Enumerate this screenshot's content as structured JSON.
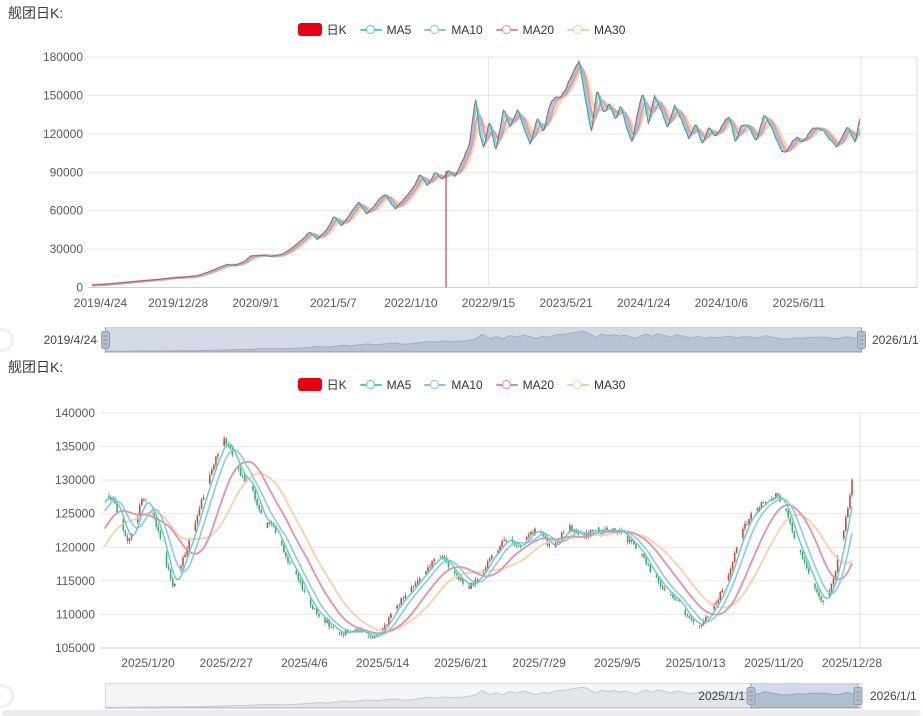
{
  "chart_data": [
    {
      "type": "candlestick",
      "title": "舰团日K:",
      "legend": [
        {
          "label": "日K",
          "type": "kline",
          "color": "#e60012"
        },
        {
          "label": "MA5",
          "type": "line",
          "color": "#55cbbb"
        },
        {
          "label": "MA10",
          "type": "line",
          "color": "#87c5ea"
        },
        {
          "label": "MA20",
          "type": "line",
          "color": "#e48ba4"
        },
        {
          "label": "MA30",
          "type": "line",
          "color": "#f4cfa4"
        }
      ],
      "y_tick_labels": [
        "0",
        "30000",
        "60000",
        "90000",
        "120000",
        "150000",
        "180000"
      ],
      "ylim": [
        0,
        180000
      ],
      "x_tick_labels": [
        "2019/4/24",
        "2019/12/28",
        "2020/9/1",
        "2021/5/7",
        "2022/1/10",
        "2022/9/15",
        "2023/5/21",
        "2024/1/24",
        "2024/10/6",
        "2025/6/11"
      ],
      "x_range": [
        "2019/4/24",
        "2026/1/1"
      ],
      "candle_colors": {
        "up": "#cb4842",
        "down": "#43a477"
      },
      "anomaly": {
        "date": "2022/5/23",
        "from": 91000,
        "to": 0,
        "color": "#e23b3b"
      },
      "close_keypoints": [
        [
          "2019/4/24",
          1800
        ],
        [
          "2019/6/10",
          2600
        ],
        [
          "2019/8/1",
          3800
        ],
        [
          "2019/10/1",
          5200
        ],
        [
          "2019/11/20",
          6300
        ],
        [
          "2020/1/5",
          7600
        ],
        [
          "2020/2/20",
          8100
        ],
        [
          "2020/3/20",
          9200
        ],
        [
          "2020/4/25",
          11800
        ],
        [
          "2020/6/1",
          15800
        ],
        [
          "2020/6/25",
          17600
        ],
        [
          "2020/7/20",
          17400
        ],
        [
          "2020/8/20",
          20500
        ],
        [
          "2020/9/10",
          24800
        ],
        [
          "2020/10/20",
          25200
        ],
        [
          "2020/11/15",
          23800
        ],
        [
          "2020/12/20",
          26500
        ],
        [
          "2021/1/20",
          31000
        ],
        [
          "2021/2/20",
          38000
        ],
        [
          "2021/3/15",
          43200
        ],
        [
          "2021/4/8",
          36800
        ],
        [
          "2021/5/10",
          46000
        ],
        [
          "2021/6/1",
          55500
        ],
        [
          "2021/6/24",
          48500
        ],
        [
          "2021/7/25",
          59000
        ],
        [
          "2021/8/18",
          65500
        ],
        [
          "2021/9/12",
          57500
        ],
        [
          "2021/10/15",
          66500
        ],
        [
          "2021/11/12",
          73500
        ],
        [
          "2021/12/12",
          61500
        ],
        [
          "2022/1/8",
          67500
        ],
        [
          "2022/2/8",
          78500
        ],
        [
          "2022/3/1",
          88000
        ],
        [
          "2022/3/24",
          79500
        ],
        [
          "2022/4/18",
          91500
        ],
        [
          "2022/5/12",
          83500
        ],
        [
          "2022/5/30",
          90000
        ],
        [
          "2022/6/20",
          87000
        ],
        [
          "2022/7/15",
          99000
        ],
        [
          "2022/8/5",
          110500
        ],
        [
          "2022/8/25",
          150500
        ],
        [
          "2022/9/8",
          120000
        ],
        [
          "2022/9/20",
          109000
        ],
        [
          "2022/10/8",
          128500
        ],
        [
          "2022/10/28",
          106500
        ],
        [
          "2022/11/22",
          139000
        ],
        [
          "2022/12/12",
          123500
        ],
        [
          "2023/1/5",
          140500
        ],
        [
          "2023/1/25",
          127000
        ],
        [
          "2023/2/15",
          110500
        ],
        [
          "2023/3/10",
          131500
        ],
        [
          "2023/3/28",
          121500
        ],
        [
          "2023/4/20",
          143000
        ],
        [
          "2023/5/21",
          150000
        ],
        [
          "2023/6/20",
          163500
        ],
        [
          "2023/7/20",
          175500
        ],
        [
          "2023/8/10",
          146000
        ],
        [
          "2023/8/28",
          120500
        ],
        [
          "2023/9/15",
          152000
        ],
        [
          "2023/10/5",
          136500
        ],
        [
          "2023/10/25",
          146500
        ],
        [
          "2023/11/12",
          131000
        ],
        [
          "2023/11/30",
          141500
        ],
        [
          "2023/12/18",
          124500
        ],
        [
          "2024/1/5",
          113500
        ],
        [
          "2024/1/24",
          137000
        ],
        [
          "2024/2/8",
          150500
        ],
        [
          "2024/2/25",
          128500
        ],
        [
          "2024/3/15",
          152500
        ],
        [
          "2024/4/5",
          138000
        ],
        [
          "2024/4/25",
          124500
        ],
        [
          "2024/5/18",
          143500
        ],
        [
          "2024/6/10",
          128000
        ],
        [
          "2024/7/2",
          115500
        ],
        [
          "2024/7/24",
          130500
        ],
        [
          "2024/8/14",
          112500
        ],
        [
          "2024/9/4",
          124000
        ],
        [
          "2024/9/26",
          118500
        ],
        [
          "2024/10/18",
          126500
        ],
        [
          "2024/11/8",
          131500
        ],
        [
          "2024/11/28",
          113500
        ],
        [
          "2024/12/15",
          128000
        ],
        [
          "2025/1/5",
          127000
        ],
        [
          "2025/2/1",
          114300
        ],
        [
          "2025/2/26",
          135600
        ],
        [
          "2025/3/25",
          120800
        ],
        [
          "2025/4/23",
          107400
        ],
        [
          "2025/5/8",
          106700
        ],
        [
          "2025/6/13",
          118600
        ],
        [
          "2025/6/25",
          113900
        ],
        [
          "2025/7/28",
          122400
        ],
        [
          "2025/9/6",
          122700
        ],
        [
          "2025/10/16",
          108600
        ],
        [
          "2025/11/19",
          127500
        ],
        [
          "2025/12/14",
          111700
        ],
        [
          "2025/12/28",
          130000
        ]
      ]
    },
    {
      "type": "candlestick",
      "title": "舰团日K:",
      "legend": [
        {
          "label": "日K",
          "type": "kline",
          "color": "#e60012"
        },
        {
          "label": "MA5",
          "type": "line",
          "color": "#55cbbb"
        },
        {
          "label": "MA10",
          "type": "line",
          "color": "#87c5ea"
        },
        {
          "label": "MA20",
          "type": "line",
          "color": "#e48ba4"
        },
        {
          "label": "MA30",
          "type": "line",
          "color": "#f4cfa4"
        }
      ],
      "y_tick_labels": [
        "105000",
        "110000",
        "115000",
        "120000",
        "125000",
        "130000",
        "135000",
        "140000"
      ],
      "ylim": [
        105000,
        140000
      ],
      "x_tick_labels": [
        "2025/1/20",
        "2025/2/27",
        "2025/4/6",
        "2025/5/14",
        "2025/6/21",
        "2025/7/29",
        "2025/9/5",
        "2025/10/13",
        "2025/11/20",
        "2025/12/28"
      ],
      "x_range": [
        "2025/1/1",
        "2026/1/1"
      ],
      "candle_colors": {
        "up": "#cb4842",
        "down": "#43a477"
      },
      "close_keypoints": [
        [
          "2024/12/30",
          127800
        ],
        [
          "2025/1/3",
          126500
        ],
        [
          "2025/1/7",
          123500
        ],
        [
          "2025/1/10",
          121000
        ],
        [
          "2025/1/14",
          123800
        ],
        [
          "2025/1/17",
          127600
        ],
        [
          "2025/1/22",
          124500
        ],
        [
          "2025/1/27",
          120200
        ],
        [
          "2025/2/1",
          114300
        ],
        [
          "2025/2/5",
          117200
        ],
        [
          "2025/2/10",
          121500
        ],
        [
          "2025/2/14",
          126000
        ],
        [
          "2025/2/18",
          130200
        ],
        [
          "2025/2/22",
          133500
        ],
        [
          "2025/2/26",
          135600
        ],
        [
          "2025/3/2",
          133800
        ],
        [
          "2025/3/6",
          131000
        ],
        [
          "2025/3/10",
          129600
        ],
        [
          "2025/3/14",
          126200
        ],
        [
          "2025/3/18",
          123200
        ],
        [
          "2025/3/21",
          124000
        ],
        [
          "2025/3/25",
          120800
        ],
        [
          "2025/3/29",
          117800
        ],
        [
          "2025/4/2",
          115400
        ],
        [
          "2025/4/6",
          113600
        ],
        [
          "2025/4/10",
          111400
        ],
        [
          "2025/4/14",
          109400
        ],
        [
          "2025/4/18",
          108100
        ],
        [
          "2025/4/23",
          107400
        ],
        [
          "2025/4/28",
          107900
        ],
        [
          "2025/5/3",
          107000
        ],
        [
          "2025/5/8",
          106700
        ],
        [
          "2025/5/13",
          107600
        ],
        [
          "2025/5/17",
          109200
        ],
        [
          "2025/5/21",
          111000
        ],
        [
          "2025/5/25",
          112800
        ],
        [
          "2025/5/29",
          114500
        ],
        [
          "2025/6/2",
          115900
        ],
        [
          "2025/6/6",
          117000
        ],
        [
          "2025/6/10",
          118200
        ],
        [
          "2025/6/13",
          118600
        ],
        [
          "2025/6/17",
          116600
        ],
        [
          "2025/6/21",
          114900
        ],
        [
          "2025/6/25",
          113900
        ],
        [
          "2025/6/29",
          115400
        ],
        [
          "2025/7/3",
          117400
        ],
        [
          "2025/7/8",
          119300
        ],
        [
          "2025/7/12",
          120600
        ],
        [
          "2025/7/16",
          121300
        ],
        [
          "2025/7/20",
          120500
        ],
        [
          "2025/7/24",
          121700
        ],
        [
          "2025/7/28",
          122400
        ],
        [
          "2025/8/1",
          120900
        ],
        [
          "2025/8/5",
          120300
        ],
        [
          "2025/8/9",
          121900
        ],
        [
          "2025/8/13",
          122600
        ],
        [
          "2025/8/17",
          121600
        ],
        [
          "2025/8/21",
          122200
        ],
        [
          "2025/8/25",
          122900
        ],
        [
          "2025/8/29",
          121900
        ],
        [
          "2025/9/2",
          122400
        ],
        [
          "2025/9/6",
          122700
        ],
        [
          "2025/9/10",
          121400
        ],
        [
          "2025/9/14",
          119700
        ],
        [
          "2025/9/18",
          117900
        ],
        [
          "2025/9/22",
          116200
        ],
        [
          "2025/9/26",
          114700
        ],
        [
          "2025/9/30",
          113100
        ],
        [
          "2025/10/4",
          111700
        ],
        [
          "2025/10/8",
          110200
        ],
        [
          "2025/10/12",
          109200
        ],
        [
          "2025/10/16",
          108600
        ],
        [
          "2025/10/20",
          109900
        ],
        [
          "2025/10/24",
          112200
        ],
        [
          "2025/10/28",
          115600
        ],
        [
          "2025/11/1",
          119100
        ],
        [
          "2025/11/5",
          122100
        ],
        [
          "2025/11/9",
          124600
        ],
        [
          "2025/11/13",
          126400
        ],
        [
          "2025/11/17",
          127400
        ],
        [
          "2025/11/21",
          127600
        ],
        [
          "2025/11/25",
          125800
        ],
        [
          "2025/11/29",
          122800
        ],
        [
          "2025/12/3",
          119300
        ],
        [
          "2025/12/7",
          115800
        ],
        [
          "2025/12/11",
          112900
        ],
        [
          "2025/12/14",
          111700
        ],
        [
          "2025/12/17",
          113600
        ],
        [
          "2025/12/20",
          117000
        ],
        [
          "2025/12/23",
          121000
        ],
        [
          "2025/12/26",
          125500
        ],
        [
          "2025/12/28",
          130000
        ]
      ]
    }
  ],
  "sliders": [
    {
      "left_label": "2019/4/24",
      "right_label": "2026/1/1",
      "selection": {
        "start": "2019/4/24",
        "end": "2026/1/1"
      }
    },
    {
      "left_label": "2025/1/1",
      "right_label": "2026/1/1",
      "selection": {
        "start": "2025/1/1",
        "end": "2026/1/1"
      }
    }
  ]
}
